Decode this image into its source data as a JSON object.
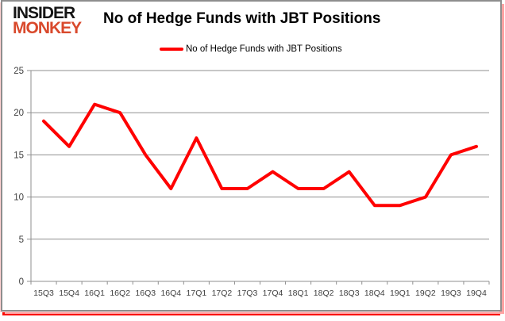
{
  "brand": {
    "line1": "INSIDER",
    "line2": "MONKEY",
    "line2_color": "#d9492c"
  },
  "title": "No of Hedge Funds with JBT Positions",
  "legend": {
    "label": "No of Hedge Funds with JBT Positions",
    "swatch_color": "#ff0000"
  },
  "chart_data": {
    "type": "line",
    "title": "No of Hedge Funds with JBT Positions",
    "categories": [
      "15Q3",
      "15Q4",
      "16Q1",
      "16Q2",
      "16Q3",
      "16Q4",
      "17Q1",
      "17Q2",
      "17Q3",
      "17Q4",
      "18Q1",
      "18Q2",
      "18Q3",
      "18Q4",
      "19Q1",
      "19Q2",
      "19Q3",
      "19Q4"
    ],
    "series": [
      {
        "name": "No of Hedge Funds with JBT Positions",
        "color": "#ff0000",
        "values": [
          19,
          16,
          21,
          20,
          15,
          11,
          17,
          11,
          11,
          13,
          11,
          11,
          13,
          9,
          9,
          10,
          15,
          16
        ]
      }
    ],
    "xlabel": "",
    "ylabel": "",
    "ylim": [
      0,
      25
    ],
    "yticks": [
      0,
      5,
      10,
      15,
      20,
      25
    ],
    "grid": true,
    "legend_position": "top-center",
    "colors": {
      "grid": "#8f8f8f",
      "axis": "#8f8f8f",
      "tick_label": "#3f3f3f",
      "background": "#ffffff"
    }
  }
}
